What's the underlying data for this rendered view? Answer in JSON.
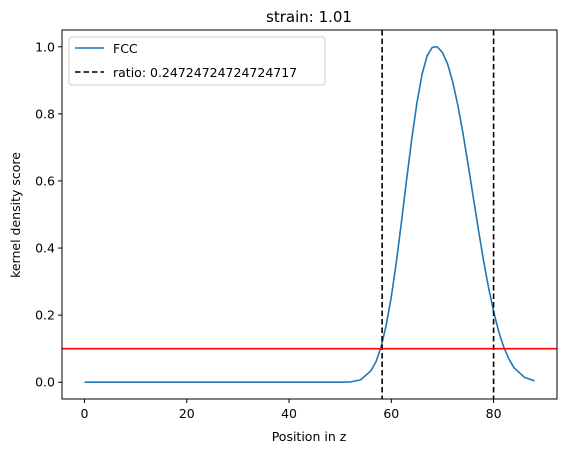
{
  "chart_data": {
    "type": "line",
    "title": "strain: 1.01",
    "xlabel": "Position in z",
    "ylabel": "kernel density score",
    "xlim": [
      -4.4,
      92.4
    ],
    "ylim": [
      -0.05,
      1.05
    ],
    "xticks": [
      0,
      20,
      40,
      60,
      80
    ],
    "yticks": [
      0.0,
      0.2,
      0.4,
      0.6,
      0.8,
      1.0
    ],
    "xtick_labels": [
      "0",
      "20",
      "40",
      "60",
      "80"
    ],
    "ytick_labels": [
      "0.0",
      "0.2",
      "0.4",
      "0.6",
      "0.8",
      "1.0"
    ],
    "grid": false,
    "legend_position": "top-left",
    "series": [
      {
        "name": "FCC",
        "color": "#1f77b4",
        "style": "solid",
        "x": [
          0,
          4,
          8,
          12,
          16,
          20,
          24,
          28,
          32,
          36,
          40,
          44,
          48,
          50,
          52,
          54,
          56,
          57,
          58,
          59,
          60,
          61,
          62,
          63,
          64,
          65,
          66,
          67,
          68,
          68.7,
          69,
          70,
          71,
          72,
          73,
          74,
          75,
          76,
          77,
          78,
          79,
          80,
          81,
          82,
          83,
          84,
          86,
          88
        ],
        "values": [
          0.0,
          0.0,
          0.0,
          0.0,
          0.0,
          0.0,
          0.0,
          0.0,
          0.0,
          0.0,
          0.0,
          0.0,
          0.0,
          0.0,
          0.001,
          0.007,
          0.034,
          0.061,
          0.105,
          0.17,
          0.255,
          0.36,
          0.48,
          0.605,
          0.725,
          0.832,
          0.917,
          0.973,
          0.998,
          1.0,
          0.999,
          0.983,
          0.949,
          0.896,
          0.826,
          0.743,
          0.651,
          0.554,
          0.458,
          0.366,
          0.283,
          0.211,
          0.151,
          0.104,
          0.069,
          0.043,
          0.015,
          0.004
        ]
      }
    ],
    "vlines": [
      {
        "x": 58.2,
        "color": "#000000",
        "style": "dashed"
      },
      {
        "x": 80.0,
        "color": "#000000",
        "style": "dashed"
      }
    ],
    "hlines": [
      {
        "y": 0.1,
        "color": "#ff0000",
        "style": "solid"
      }
    ],
    "legend": [
      {
        "label": "FCC",
        "color": "#1f77b4",
        "style": "solid"
      },
      {
        "label": "ratio: 0.24724724724724717",
        "color": "#000000",
        "style": "dashed"
      }
    ]
  }
}
